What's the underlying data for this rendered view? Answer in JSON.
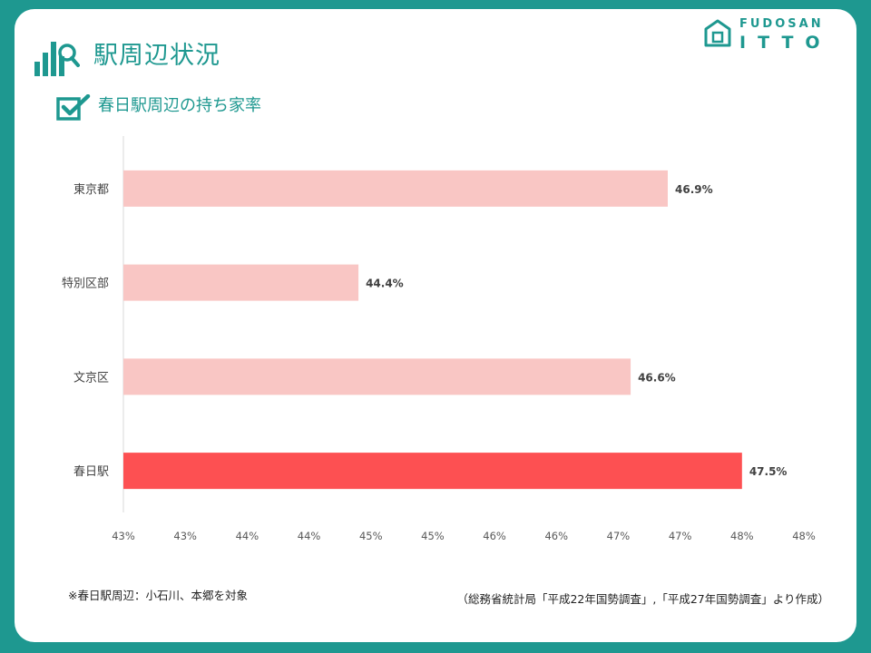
{
  "header": {
    "title": "駅周辺状況",
    "subtitle": "春日駅周辺の持ち家率"
  },
  "logo": {
    "top_text": "FUDOSAN",
    "bottom_text": "ITTO"
  },
  "chart_data": {
    "type": "bar",
    "orientation": "horizontal",
    "title": "春日駅周辺の持ち家率",
    "categories": [
      "東京都",
      "特別区部",
      "文京区",
      "春日駅"
    ],
    "values": [
      46.9,
      44.4,
      46.6,
      47.5
    ],
    "value_labels": [
      "46.9%",
      "44.4%",
      "46.6%",
      "47.5%"
    ],
    "bar_colors": [
      "#f9c6c4",
      "#f9c6c4",
      "#f9c6c4",
      "#fd5052"
    ],
    "xlim": [
      42.5,
      48.0
    ],
    "x_tick_labels": [
      "43%",
      "43%",
      "44%",
      "44%",
      "45%",
      "45%",
      "46%",
      "46%",
      "47%",
      "47%",
      "48%",
      "48%"
    ],
    "grid": false,
    "legend": "none"
  },
  "footer": {
    "note": "※春日駅周辺：小石川、本郷を対象",
    "source": "（総務省統計局「平成22年国勢調査」,「平成27年国勢調査」より作成）"
  },
  "colors": {
    "brand": "#1e9890",
    "bar_highlight": "#fd5052",
    "bar_default": "#f9c6c4"
  }
}
